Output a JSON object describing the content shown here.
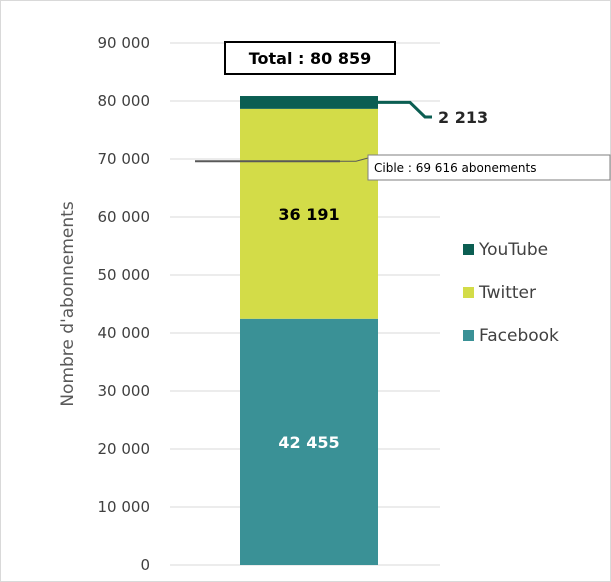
{
  "chart_data": {
    "type": "bar",
    "stacked": true,
    "categories": [
      ""
    ],
    "ylabel": "Nombre d'abonnements",
    "ylim": [
      0,
      90000
    ],
    "yticks": [
      0,
      10000,
      20000,
      30000,
      40000,
      50000,
      60000,
      70000,
      80000,
      90000
    ],
    "ytick_labels": [
      "0",
      "10 000",
      "20 000",
      "30 000",
      "40 000",
      "50 000",
      "60 000",
      "70 000",
      "80 000",
      "90 000"
    ],
    "grid": true,
    "legend_position": "right",
    "series": [
      {
        "name": "Facebook",
        "values": [
          42455
        ],
        "label": "42 455",
        "color": "#3a9196",
        "label_color": "#ffffff"
      },
      {
        "name": "Twitter",
        "values": [
          36191
        ],
        "label": "36 191",
        "color": "#d3dc48",
        "label_color": "#000000"
      },
      {
        "name": "YouTube",
        "values": [
          2213
        ],
        "label": "2 213",
        "color": "#0b5e52",
        "label_color": "#262626"
      }
    ],
    "legend_order": [
      "YouTube",
      "Twitter",
      "Facebook"
    ],
    "total": {
      "value": 80859,
      "label": "Total : 80 859"
    },
    "target": {
      "value": 69616,
      "label": "Cible : 69 616 abonements"
    }
  }
}
